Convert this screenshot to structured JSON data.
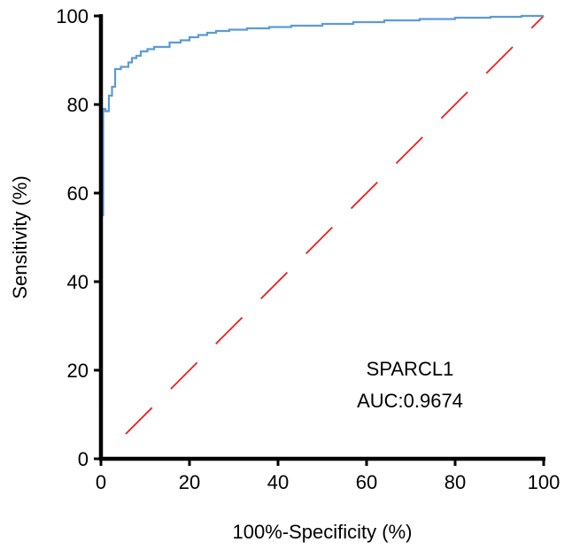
{
  "chart_data": {
    "type": "line",
    "title": "",
    "xlabel": "100%-Specificity (%)",
    "ylabel": "Sensitivity (%)",
    "xlim": [
      0,
      100
    ],
    "ylim": [
      0,
      100
    ],
    "x_ticks": [
      "0",
      "20",
      "40",
      "60",
      "80",
      "100"
    ],
    "y_ticks": [
      "0",
      "20",
      "40",
      "60",
      "80",
      "100"
    ],
    "grid": false,
    "legend": "none",
    "annotation_name": "SPARCL1",
    "annotation_auc": "AUC:0.9674",
    "series": [
      {
        "color": "#5b9bd5",
        "x": [
          0,
          0,
          0.2,
          0.2,
          0.5,
          0.5,
          1.0,
          1.0,
          1.8,
          1.8,
          2.5,
          2.5,
          3.2,
          3.2,
          4.5,
          4.5,
          6.2,
          6.2,
          7.0,
          7.0,
          8.0,
          8.0,
          9.0,
          9.0,
          10.5,
          10.5,
          12.0,
          12.0,
          15.5,
          15.5,
          18.0,
          18.0,
          20.0,
          20.0,
          22.0,
          22.0,
          24.0,
          24.0,
          26.0,
          26.0,
          29.0,
          29.0,
          33.0,
          33.0,
          38.0,
          38.0,
          43.0,
          43.0,
          50.0,
          50.0,
          57.0,
          57.0,
          64.0,
          64.0,
          72.0,
          72.0,
          80.0,
          80.0,
          88.0,
          88.0,
          95.0,
          95.0,
          100.0
        ],
        "y": [
          0,
          13,
          13,
          55,
          55,
          79,
          79,
          78.5,
          78.5,
          82,
          82,
          84,
          84,
          88,
          88,
          88.5,
          88.5,
          89.5,
          89.5,
          90.5,
          90.5,
          91,
          91,
          92,
          92,
          92.5,
          92.5,
          93,
          93,
          94,
          94,
          94.5,
          94.5,
          95.2,
          95.2,
          95.7,
          95.7,
          96.2,
          96.2,
          96.6,
          96.6,
          96.9,
          96.9,
          97.2,
          97.2,
          97.5,
          97.5,
          97.8,
          97.8,
          98.2,
          98.2,
          98.6,
          98.6,
          99.0,
          99.0,
          99.3,
          99.3,
          99.6,
          99.6,
          99.8,
          99.8,
          100,
          100
        ]
      }
    ],
    "reference_line": {
      "color": "#e02020",
      "style": "dashed",
      "x": [
        0,
        100
      ],
      "y": [
        0,
        100
      ]
    }
  }
}
